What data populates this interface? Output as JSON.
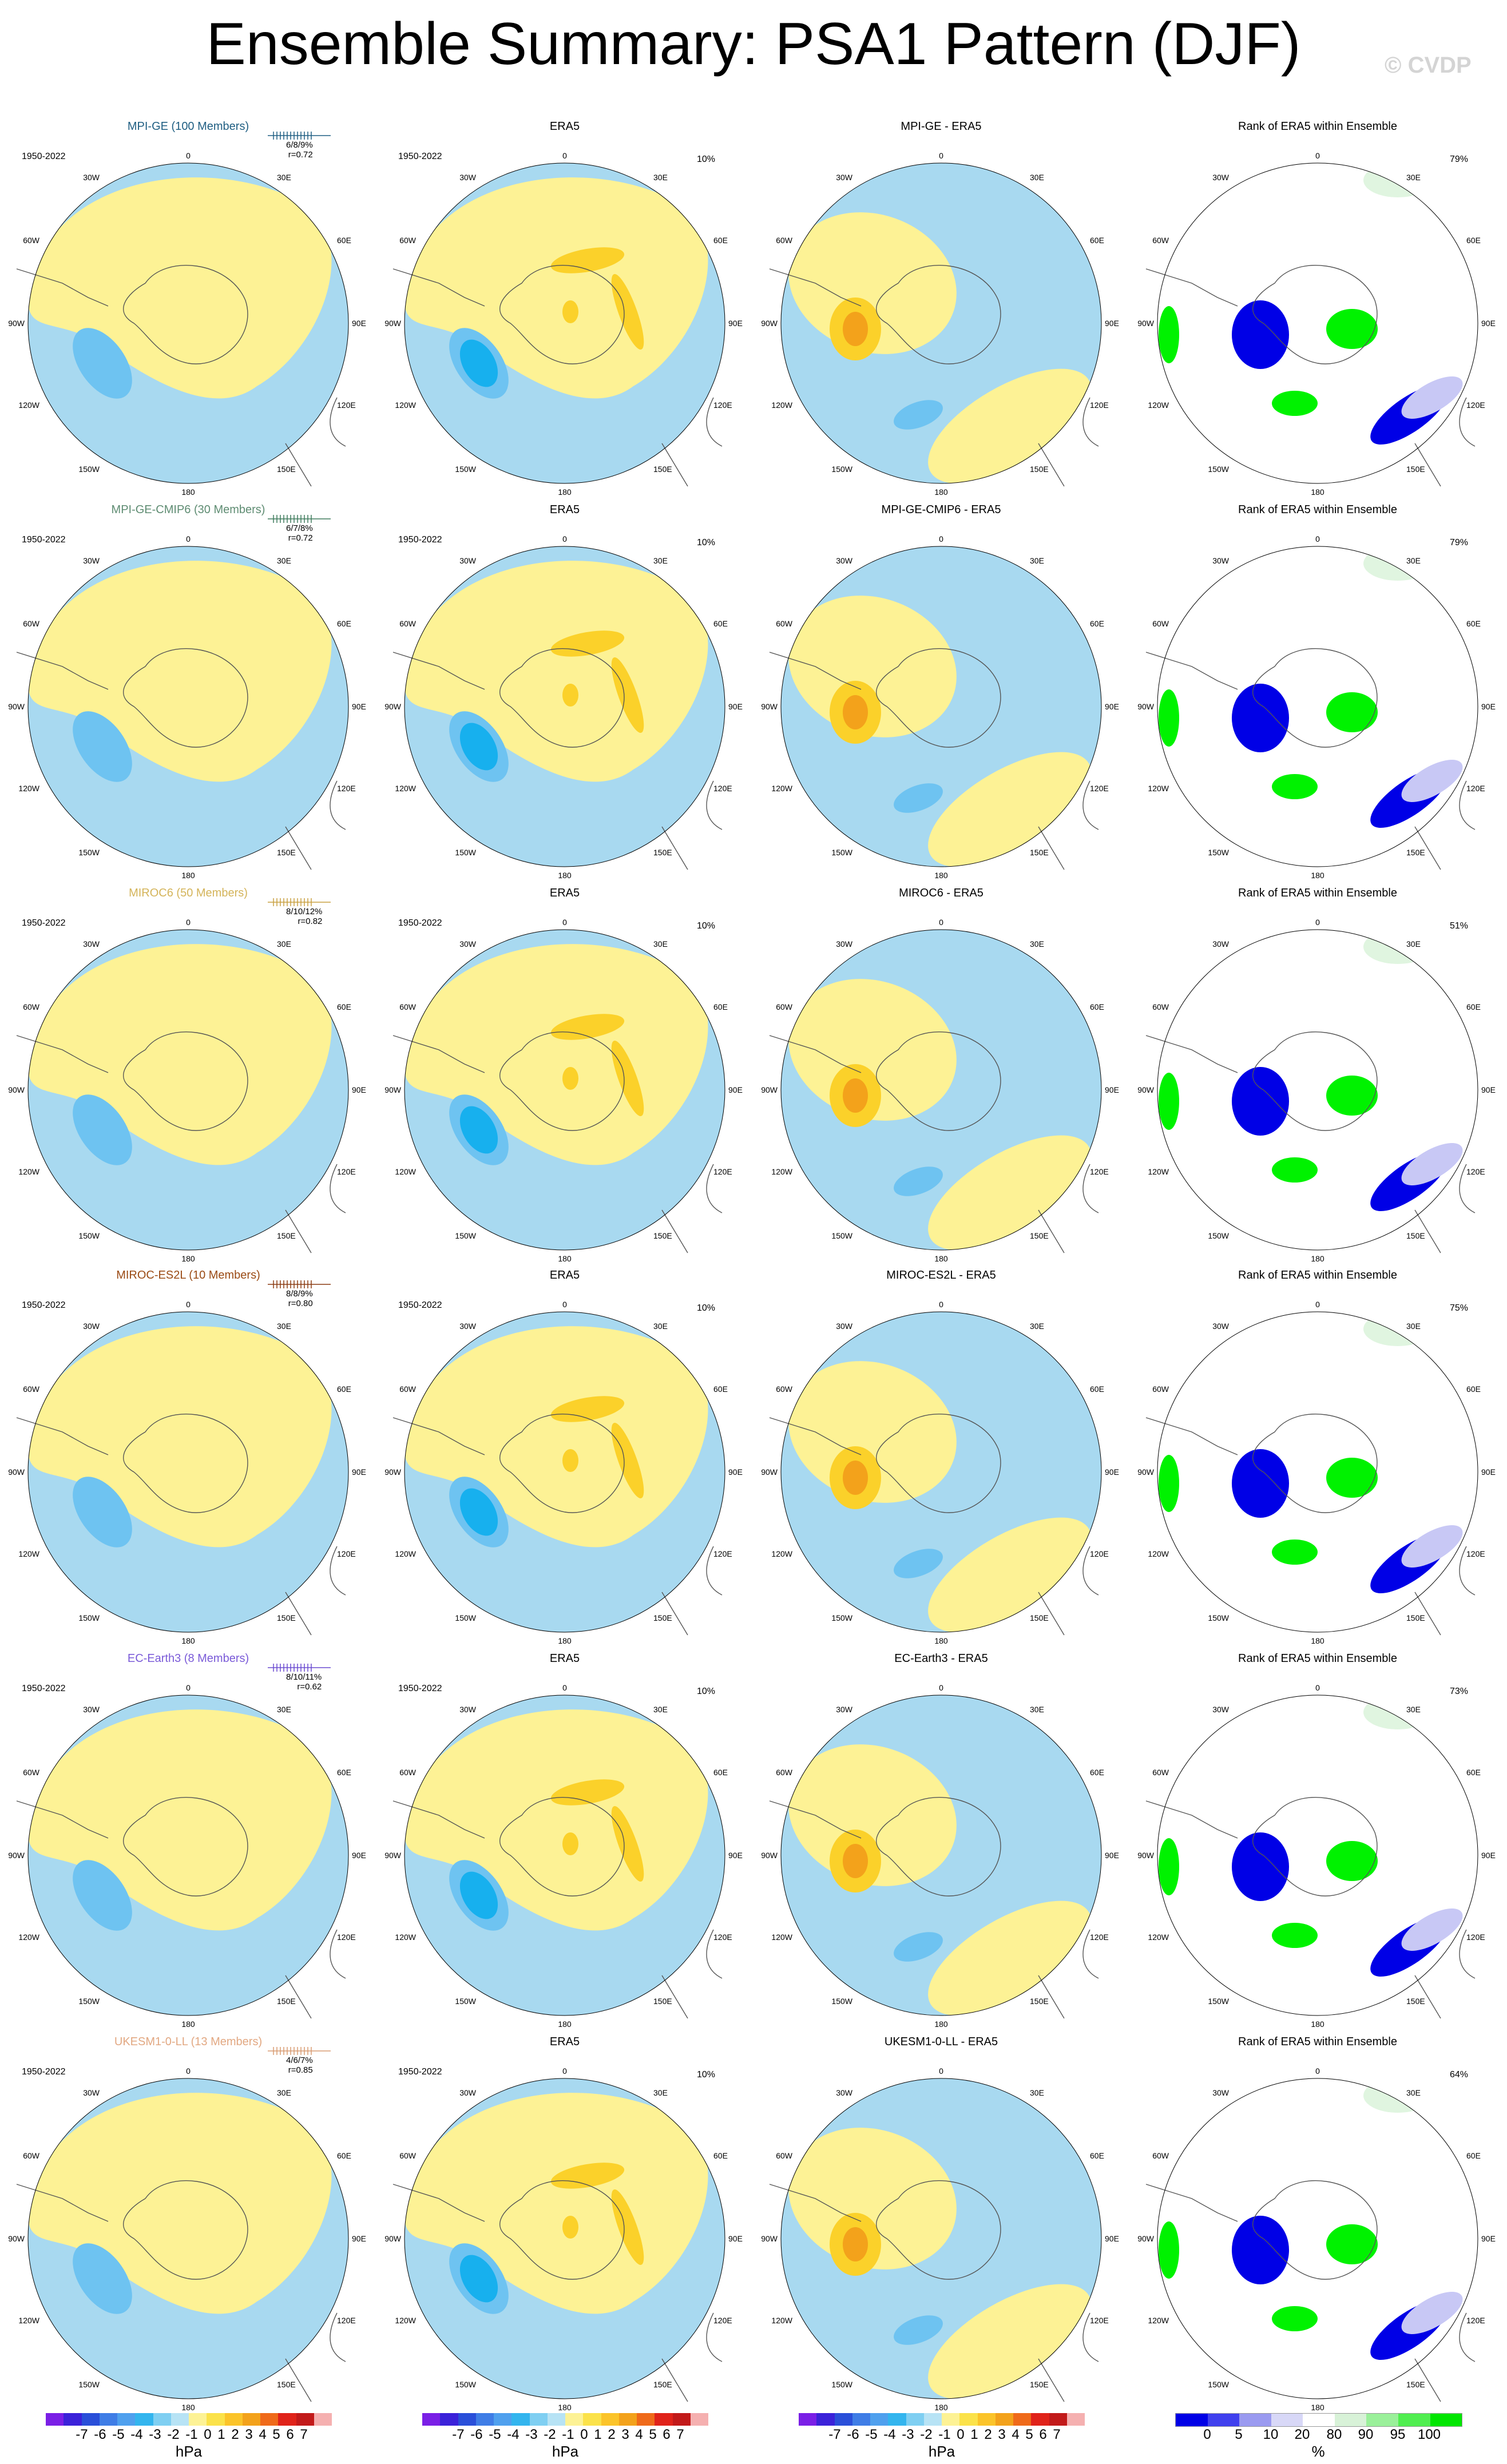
{
  "title": "Ensemble Summary: PSA1 Pattern (DJF)",
  "watermark": "© CVDP",
  "colors": {
    "yellow_weak": "#fdf295",
    "yellow_mid": "#fbd12a",
    "orange": "#f3a21b",
    "blue_weak": "#a8d9f0",
    "blue_mid": "#6ec3f1",
    "blue_strong": "#17b0ee",
    "rank_blue_dark": "#0000e6",
    "rank_blue_light": "#c8c8f5",
    "rank_green_bright": "#00f200",
    "rank_green_light": "#e0f5e0"
  },
  "map_labels": {
    "top": "0",
    "bottom": "180",
    "upper_left": "30W",
    "upper_right": "30E",
    "mid_left_upper": "60W",
    "mid_right_upper": "60E",
    "left": "90W",
    "right": "90E",
    "mid_left_lower": "120W",
    "mid_right_lower": "120E",
    "lower_left": "150W",
    "lower_right": "150E"
  },
  "rows": [
    {
      "model": {
        "title": "MPI-GE (100 Members)",
        "title_color": "#1f5e82",
        "period": "1950-2022",
        "stats": "6/8/9%",
        "r": "r=0.72",
        "strip_color": "#1f5e82"
      },
      "era5": {
        "title": "ERA5",
        "period": "1950-2022",
        "pct": "10%"
      },
      "diff": {
        "title": "MPI-GE - ERA5"
      },
      "rank": {
        "title": "Rank of ERA5 within Ensemble",
        "pct": "79%"
      }
    },
    {
      "model": {
        "title": "MPI-GE-CMIP6 (30 Members)",
        "title_color": "#5e8c72",
        "period": "1950-2022",
        "stats": "6/7/8%",
        "r": "r=0.72",
        "strip_color": "#3e7a5c"
      },
      "era5": {
        "title": "ERA5",
        "period": "1950-2022",
        "pct": "10%"
      },
      "diff": {
        "title": "MPI-GE-CMIP6 - ERA5"
      },
      "rank": {
        "title": "Rank of ERA5 within Ensemble",
        "pct": "79%"
      }
    },
    {
      "model": {
        "title": "MIROC6 (50 Members)",
        "title_color": "#d4b45a",
        "period": "1950-2022",
        "stats": "8/10/12%",
        "r": "r=0.82",
        "strip_color": "#c8a040"
      },
      "era5": {
        "title": "ERA5",
        "period": "1950-2022",
        "pct": "10%"
      },
      "diff": {
        "title": "MIROC6 - ERA5"
      },
      "rank": {
        "title": "Rank of ERA5 within Ensemble",
        "pct": "51%"
      }
    },
    {
      "model": {
        "title": "MIROC-ES2L (10 Members)",
        "title_color": "#9a4a14",
        "period": "1950-2022",
        "stats": "8/8/9%",
        "r": "r=0.80",
        "strip_color": "#8a3a10"
      },
      "era5": {
        "title": "ERA5",
        "period": "1950-2022",
        "pct": "10%"
      },
      "diff": {
        "title": "MIROC-ES2L - ERA5"
      },
      "rank": {
        "title": "Rank of ERA5 within Ensemble",
        "pct": "75%"
      }
    },
    {
      "model": {
        "title": "EC-Earth3 (8 Members)",
        "title_color": "#7a5ad8",
        "period": "1950-2022",
        "stats": "8/10/11%",
        "r": "r=0.62",
        "strip_color": "#6a4ad0"
      },
      "era5": {
        "title": "ERA5",
        "period": "1950-2022",
        "pct": "10%"
      },
      "diff": {
        "title": "EC-Earth3 - ERA5"
      },
      "rank": {
        "title": "Rank of ERA5 within Ensemble",
        "pct": "73%"
      }
    },
    {
      "model": {
        "title": "UKESM1-0-LL (13 Members)",
        "title_color": "#e2a882",
        "period": "1950-2022",
        "stats": "4/6/7%",
        "r": "r=0.85",
        "strip_color": "#d89a70"
      },
      "era5": {
        "title": "ERA5",
        "period": "1950-2022",
        "pct": "10%"
      },
      "diff": {
        "title": "UKESM1-0-LL - ERA5"
      },
      "rank": {
        "title": "Rank of ERA5 within Ensemble",
        "pct": "64%"
      }
    }
  ],
  "colorbar_hpa": {
    "ticks": "-7 -6 -5 -4 -3 -2 -1 0 1 2 3 4 5 6 7",
    "unit": "hPa",
    "colors": [
      "#7a1fe6",
      "#3b22d9",
      "#2a4fd9",
      "#3f7de6",
      "#4fa0ee",
      "#33b5ee",
      "#7fcff2",
      "#b7e3f5",
      "#fdf295",
      "#fbe24a",
      "#fbc42a",
      "#f3a21b",
      "#ef6a1a",
      "#e0231a",
      "#c21a1a",
      "#f5b0b0"
    ]
  },
  "colorbar_rank": {
    "ticks": [
      "0",
      "5",
      "10",
      "20",
      "80",
      "90",
      "95",
      "100"
    ],
    "unit": "%",
    "colors": [
      "#0000e6",
      "#4040ee",
      "#9a9af0",
      "#d8d8f7",
      "#ffffff",
      "#d8f2d8",
      "#9af09a",
      "#50ee50",
      "#00e600"
    ]
  }
}
